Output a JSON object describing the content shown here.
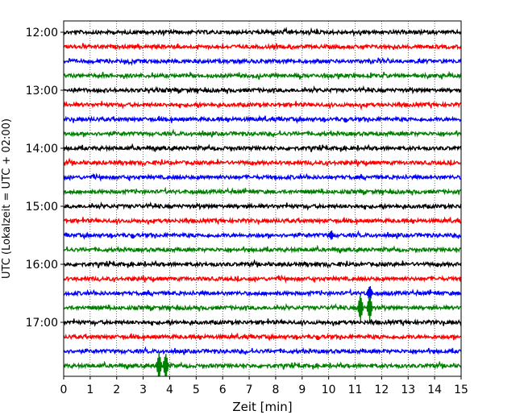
{
  "chart_data": {
    "type": "line",
    "xlabel": "Zeit  [min]",
    "ylabel": "UTC (Lokalzeit = UTC + 02:00)",
    "xlim": [
      0,
      15
    ],
    "x_ticks": [
      "0",
      "1",
      "2",
      "3",
      "4",
      "5",
      "6",
      "7",
      "8",
      "9",
      "10",
      "11",
      "12",
      "13",
      "14",
      "15"
    ],
    "y_tick_labels": [
      "12:00",
      "13:00",
      "14:00",
      "15:00",
      "16:00",
      "17:00"
    ],
    "grid": "vertical dotted at each minute",
    "trace_colors": [
      "#000000",
      "#ff0000",
      "#0000ff",
      "#008000"
    ],
    "trace_start_times": [
      "12:00",
      "12:15",
      "12:30",
      "12:45",
      "13:00",
      "13:15",
      "13:30",
      "13:45",
      "14:00",
      "14:15",
      "14:30",
      "14:45",
      "15:00",
      "15:15",
      "15:30",
      "15:45",
      "16:00",
      "16:15",
      "16:30",
      "16:45",
      "17:00",
      "17:15",
      "17:30",
      "17:45"
    ],
    "events": [
      {
        "trace_start": "16:45",
        "x_min": 11.2,
        "amplitude": "large"
      },
      {
        "trace_start": "16:45",
        "x_min": 11.55,
        "amplitude": "large"
      },
      {
        "trace_start": "17:45",
        "x_min": 3.6,
        "amplitude": "large"
      },
      {
        "trace_start": "17:45",
        "x_min": 3.85,
        "amplitude": "large"
      },
      {
        "trace_start": "16:30",
        "x_min": 11.55,
        "amplitude": "medium"
      },
      {
        "trace_start": "15:30",
        "x_min": 10.1,
        "amplitude": "small"
      }
    ]
  }
}
